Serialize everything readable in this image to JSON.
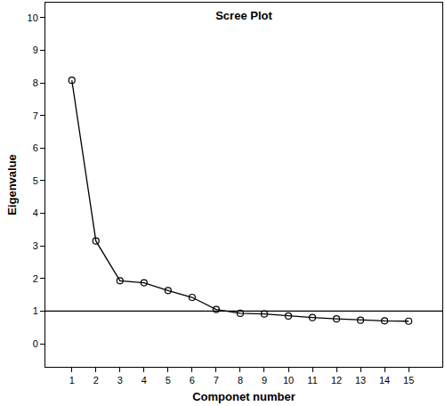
{
  "chart_data": {
    "type": "line",
    "title": "Scree Plot",
    "x_label": "Componet number",
    "y_label": "Eigenvalue",
    "x": [
      1,
      2,
      3,
      4,
      5,
      6,
      7,
      8,
      9,
      10,
      11,
      12,
      13,
      14,
      15
    ],
    "values": [
      8.08,
      3.15,
      1.93,
      1.87,
      1.63,
      1.42,
      1.05,
      0.93,
      0.91,
      0.85,
      0.8,
      0.76,
      0.72,
      0.7,
      0.69
    ],
    "color": "#000000",
    "marker": "open_circle",
    "xlim": [
      -0.1,
      16.4
    ],
    "xticks": [
      1,
      2,
      3,
      4,
      5,
      6,
      7,
      8,
      9,
      10,
      11,
      12,
      13,
      14,
      15
    ],
    "ylim": [
      -0.71,
      10.46
    ],
    "yticks": [
      0,
      1,
      2,
      3,
      4,
      5,
      6,
      7,
      8,
      9,
      10
    ],
    "hline": 1,
    "grid": false
  }
}
